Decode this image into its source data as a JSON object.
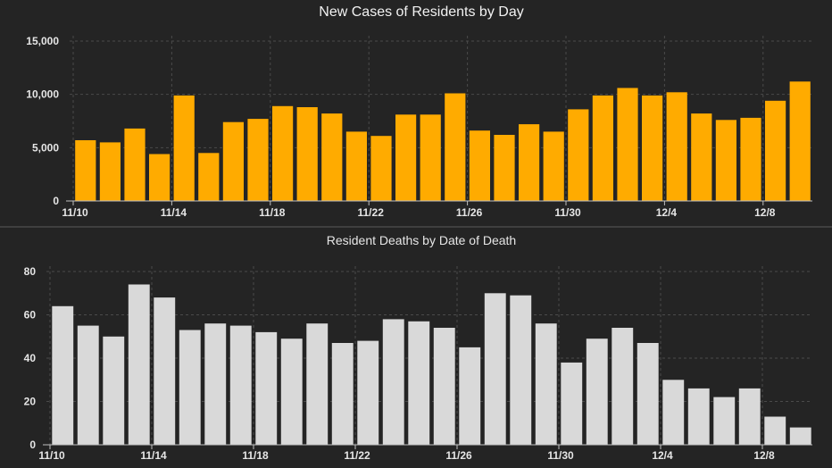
{
  "chart_data": [
    {
      "type": "bar",
      "title": "New Cases of Residents by Day",
      "categories": [
        "11/10",
        "11/11",
        "11/12",
        "11/13",
        "11/14",
        "11/15",
        "11/16",
        "11/17",
        "11/18",
        "11/19",
        "11/20",
        "11/21",
        "11/22",
        "11/23",
        "11/24",
        "11/25",
        "11/26",
        "11/27",
        "11/28",
        "11/29",
        "11/30",
        "12/1",
        "12/2",
        "12/3",
        "12/4",
        "12/5",
        "12/6",
        "12/7",
        "12/8",
        "12/9"
      ],
      "values": [
        5700,
        5500,
        6800,
        4400,
        9900,
        4500,
        7400,
        7700,
        8900,
        8800,
        8200,
        6500,
        6100,
        8100,
        8100,
        10100,
        6600,
        6200,
        7200,
        6500,
        8600,
        9900,
        10600,
        9900,
        10200,
        8200,
        7600,
        7800,
        9400,
        11200
      ],
      "xticks": [
        "11/10",
        "11/14",
        "11/18",
        "11/22",
        "11/26",
        "11/30",
        "12/4",
        "12/8"
      ],
      "yticks": [
        "0",
        "5,000",
        "10,000",
        "15,000"
      ],
      "ylim": [
        0,
        15000
      ],
      "bar_color": "#ffab00"
    },
    {
      "type": "bar",
      "title": "Resident Deaths by Date of Death",
      "categories": [
        "11/10",
        "11/11",
        "11/12",
        "11/13",
        "11/14",
        "11/15",
        "11/16",
        "11/17",
        "11/18",
        "11/19",
        "11/20",
        "11/21",
        "11/22",
        "11/23",
        "11/24",
        "11/25",
        "11/26",
        "11/27",
        "11/28",
        "11/29",
        "11/30",
        "12/1",
        "12/2",
        "12/3",
        "12/4",
        "12/5",
        "12/6",
        "12/7",
        "12/8",
        "12/9"
      ],
      "values": [
        64,
        55,
        50,
        74,
        68,
        53,
        56,
        55,
        52,
        49,
        56,
        47,
        48,
        58,
        57,
        54,
        45,
        70,
        69,
        56,
        38,
        49,
        54,
        47,
        30,
        26,
        22,
        26,
        13,
        8
      ],
      "xticks": [
        "11/10",
        "11/14",
        "11/18",
        "11/22",
        "11/26",
        "11/30",
        "12/4",
        "12/8"
      ],
      "yticks": [
        "0",
        "20",
        "40",
        "60",
        "80"
      ],
      "ylim": [
        0,
        80
      ],
      "bar_color": "#d9d9d9"
    }
  ]
}
